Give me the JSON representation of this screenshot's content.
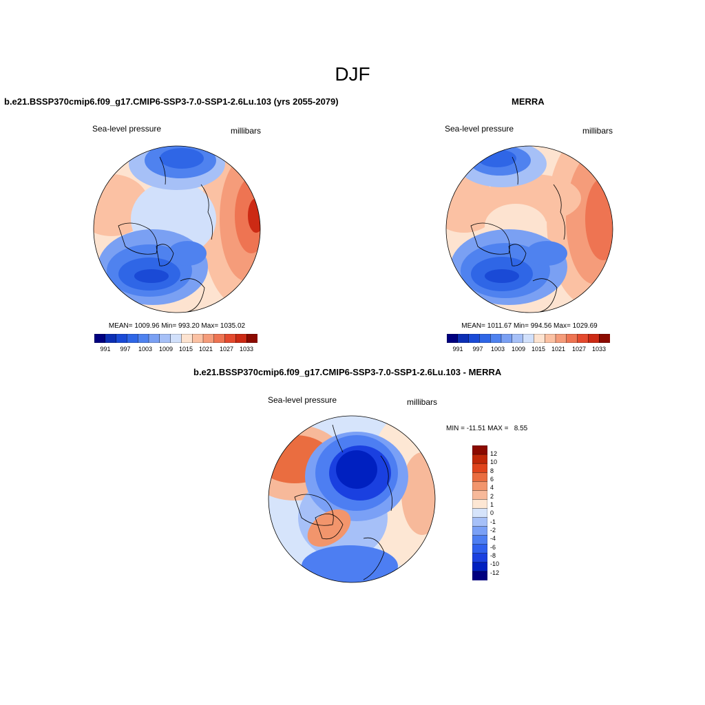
{
  "title": "DJF",
  "colors": {
    "scale": [
      "#00007f",
      "#0c2fb4",
      "#1a4ad6",
      "#2f66e6",
      "#4f82ef",
      "#7aa0f3",
      "#a6c0f7",
      "#d1e0fb",
      "#fde3d0",
      "#fbc1a3",
      "#f59c7a",
      "#ee7452",
      "#e44a2e",
      "#cc2a14",
      "#8b0a00"
    ],
    "diff_scale": [
      "#00007f",
      "#0020c0",
      "#1a40e0",
      "#2f60ee",
      "#4d7ef2",
      "#7aa0f6",
      "#a6c0f8",
      "#d6e4fb",
      "#fde7d4",
      "#f7b99a",
      "#f2956c",
      "#ea6d40",
      "#e0441c",
      "#c02808",
      "#8b0a00"
    ],
    "ocean_hi": "#d7e4fb",
    "coast": "#000000"
  },
  "panels": {
    "model": {
      "title": "b.e21.BSSP370cmip6.f09_g17.CMIP6-SSP3-7.0-SSP1-2.6Lu.103 (yrs 2055-2079)",
      "variable": "Sea-level pressure",
      "units": "millibars",
      "stats": "MEAN= 1009.96  Min= 993.20  Max= 1035.02",
      "ticks": [
        "991",
        "997",
        "1003",
        "1009",
        "1015",
        "1021",
        "1027",
        "1033"
      ]
    },
    "obs": {
      "title": "MERRA",
      "variable": "Sea-level pressure",
      "units": "millibars",
      "stats": "MEAN= 1011.67  Min= 994.56  Max= 1029.69",
      "ticks": [
        "991",
        "997",
        "1003",
        "1009",
        "1015",
        "1021",
        "1027",
        "1033"
      ]
    },
    "diff": {
      "title": "b.e21.BSSP370cmip6.f09_g17.CMIP6-SSP3-7.0-SSP1-2.6Lu.103 - MERRA",
      "variable": "Sea-level pressure",
      "units": "millibars",
      "stats": "MIN = -11.51 MAX =   8.55",
      "ticks": [
        "12",
        "10",
        "8",
        "6",
        "4",
        "2",
        "1",
        "0",
        "-1",
        "-2",
        "-4",
        "-6",
        "-8",
        "-10",
        "-12"
      ]
    }
  }
}
